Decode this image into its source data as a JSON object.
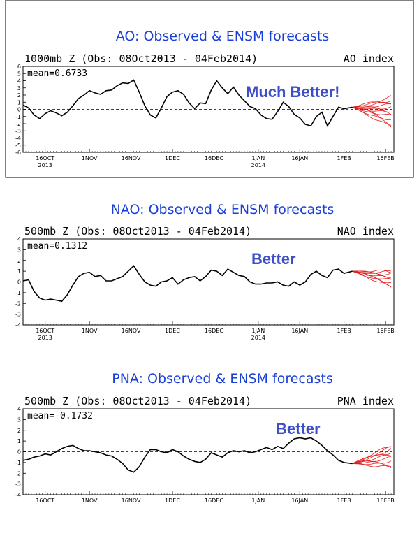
{
  "chart_data": [
    {
      "type": "line",
      "title": "AO: Observed & ENSM forecasts",
      "subtitle": "1000mb Z (Obs: 08Oct2013 - 04Feb2014)",
      "index_label": "AO index",
      "mean_label": "mean=0.6733",
      "annotation": "Much Better!",
      "ylim": [
        -6,
        6
      ],
      "yticks": [
        "6",
        "5",
        "4",
        "3",
        "2",
        "1",
        "0",
        "-1",
        "-2",
        "-3",
        "-4",
        "-5",
        "-6"
      ],
      "xticks": [
        {
          "label": "16OCT",
          "sub": "2013"
        },
        {
          "label": "1NOV",
          "sub": ""
        },
        {
          "label": "16NOV",
          "sub": ""
        },
        {
          "label": "1DEC",
          "sub": ""
        },
        {
          "label": "16DEC",
          "sub": ""
        },
        {
          "label": "1JAN",
          "sub": "2014"
        },
        {
          "label": "16JAN",
          "sub": ""
        },
        {
          "label": "1FEB",
          "sub": ""
        },
        {
          "label": "16FEB",
          "sub": ""
        }
      ],
      "observed": [
        [
          "2013-10-08",
          0.6
        ],
        [
          "2013-10-10",
          0.2
        ],
        [
          "2013-10-12",
          -0.8
        ],
        [
          "2013-10-14",
          -1.3
        ],
        [
          "2013-10-16",
          -0.6
        ],
        [
          "2013-10-18",
          -0.2
        ],
        [
          "2013-10-20",
          -0.5
        ],
        [
          "2013-10-22",
          -0.9
        ],
        [
          "2013-10-24",
          -0.4
        ],
        [
          "2013-10-26",
          0.5
        ],
        [
          "2013-10-28",
          1.5
        ],
        [
          "2013-10-30",
          2.0
        ],
        [
          "2013-11-01",
          2.6
        ],
        [
          "2013-11-03",
          2.3
        ],
        [
          "2013-11-05",
          2.1
        ],
        [
          "2013-11-07",
          2.6
        ],
        [
          "2013-11-09",
          2.7
        ],
        [
          "2013-11-11",
          3.3
        ],
        [
          "2013-11-13",
          3.7
        ],
        [
          "2013-11-15",
          3.6
        ],
        [
          "2013-11-17",
          4.1
        ],
        [
          "2013-11-19",
          2.4
        ],
        [
          "2013-11-21",
          0.5
        ],
        [
          "2013-11-23",
          -0.8
        ],
        [
          "2013-11-25",
          -1.2
        ],
        [
          "2013-11-27",
          0.2
        ],
        [
          "2013-11-29",
          1.8
        ],
        [
          "2013-12-01",
          2.4
        ],
        [
          "2013-12-03",
          2.6
        ],
        [
          "2013-12-05",
          2.1
        ],
        [
          "2013-12-07",
          0.9
        ],
        [
          "2013-12-09",
          0.1
        ],
        [
          "2013-12-11",
          0.9
        ],
        [
          "2013-12-13",
          0.8
        ],
        [
          "2013-12-15",
          2.7
        ],
        [
          "2013-12-17",
          4.0
        ],
        [
          "2013-12-19",
          3.0
        ],
        [
          "2013-12-21",
          2.2
        ],
        [
          "2013-12-23",
          3.1
        ],
        [
          "2013-12-25",
          2.0
        ],
        [
          "2013-12-27",
          1.2
        ],
        [
          "2013-12-29",
          0.4
        ],
        [
          "2013-12-31",
          0.1
        ],
        [
          "2014-01-02",
          -0.8
        ],
        [
          "2014-01-04",
          -1.3
        ],
        [
          "2014-01-06",
          -1.4
        ],
        [
          "2014-01-08",
          -0.3
        ],
        [
          "2014-01-10",
          1.0
        ],
        [
          "2014-01-12",
          0.4
        ],
        [
          "2014-01-14",
          -0.7
        ],
        [
          "2014-01-16",
          -1.2
        ],
        [
          "2014-01-18",
          -2.1
        ],
        [
          "2014-01-20",
          -2.3
        ],
        [
          "2014-01-22",
          -1.0
        ],
        [
          "2014-01-24",
          -0.4
        ],
        [
          "2014-01-26",
          -2.3
        ],
        [
          "2014-01-28",
          -1.0
        ],
        [
          "2014-01-30",
          0.3
        ],
        [
          "2014-02-01",
          0.1
        ],
        [
          "2014-02-04",
          0.3
        ]
      ],
      "forecast_start": "2014-02-04",
      "forecast_end": "2014-02-18",
      "forecast_start_value": 0.3,
      "forecast_end_values": [
        -2.5,
        -2.0,
        -1.5,
        -1.0,
        -0.6,
        -0.2,
        0.2,
        0.6,
        1.0,
        1.3,
        1.7
      ]
    },
    {
      "type": "line",
      "title": "NAO: Observed & ENSM forecasts",
      "subtitle": "500mb Z (Obs: 08Oct2013 - 04Feb2014)",
      "index_label": "NAO index",
      "mean_label": "mean=0.1312",
      "annotation": "Better",
      "ylim": [
        -4,
        4
      ],
      "yticks": [
        "4",
        "3",
        "2",
        "1",
        "0",
        "-1",
        "-2",
        "-3",
        "-4"
      ],
      "xticks": [
        {
          "label": "16OCT",
          "sub": "2013"
        },
        {
          "label": "1NOV",
          "sub": ""
        },
        {
          "label": "16NOV",
          "sub": ""
        },
        {
          "label": "1DEC",
          "sub": ""
        },
        {
          "label": "16DEC",
          "sub": ""
        },
        {
          "label": "1JAN",
          "sub": "2014"
        },
        {
          "label": "16JAN",
          "sub": ""
        },
        {
          "label": "1FEB",
          "sub": ""
        },
        {
          "label": "16FEB",
          "sub": ""
        }
      ],
      "observed": [
        [
          "2013-10-08",
          0.1
        ],
        [
          "2013-10-10",
          0.2
        ],
        [
          "2013-10-12",
          -0.9
        ],
        [
          "2013-10-14",
          -1.5
        ],
        [
          "2013-10-16",
          -1.7
        ],
        [
          "2013-10-18",
          -1.6
        ],
        [
          "2013-10-20",
          -1.7
        ],
        [
          "2013-10-22",
          -1.8
        ],
        [
          "2013-10-24",
          -1.2
        ],
        [
          "2013-10-26",
          -0.3
        ],
        [
          "2013-10-28",
          0.5
        ],
        [
          "2013-10-30",
          0.8
        ],
        [
          "2013-11-01",
          0.9
        ],
        [
          "2013-11-03",
          0.5
        ],
        [
          "2013-11-05",
          0.6
        ],
        [
          "2013-11-07",
          0.1
        ],
        [
          "2013-11-09",
          0.1
        ],
        [
          "2013-11-11",
          0.3
        ],
        [
          "2013-11-13",
          0.5
        ],
        [
          "2013-11-15",
          1.0
        ],
        [
          "2013-11-17",
          1.5
        ],
        [
          "2013-11-19",
          0.7
        ],
        [
          "2013-11-21",
          0.0
        ],
        [
          "2013-11-23",
          -0.3
        ],
        [
          "2013-11-25",
          -0.4
        ],
        [
          "2013-11-27",
          0.0
        ],
        [
          "2013-11-29",
          0.1
        ],
        [
          "2013-12-01",
          0.4
        ],
        [
          "2013-12-03",
          -0.2
        ],
        [
          "2013-12-05",
          0.2
        ],
        [
          "2013-12-07",
          0.4
        ],
        [
          "2013-12-09",
          0.5
        ],
        [
          "2013-12-11",
          0.1
        ],
        [
          "2013-12-13",
          0.5
        ],
        [
          "2013-12-15",
          1.1
        ],
        [
          "2013-12-17",
          1.0
        ],
        [
          "2013-12-19",
          0.6
        ],
        [
          "2013-12-21",
          1.2
        ],
        [
          "2013-12-23",
          0.9
        ],
        [
          "2013-12-25",
          0.6
        ],
        [
          "2013-12-27",
          0.5
        ],
        [
          "2013-12-29",
          0.0
        ],
        [
          "2013-12-31",
          -0.2
        ],
        [
          "2014-01-02",
          -0.2
        ],
        [
          "2014-01-04",
          -0.1
        ],
        [
          "2014-01-06",
          -0.1
        ],
        [
          "2014-01-08",
          0.0
        ],
        [
          "2014-01-10",
          -0.3
        ],
        [
          "2014-01-12",
          -0.4
        ],
        [
          "2014-01-14",
          0.0
        ],
        [
          "2014-01-16",
          -0.3
        ],
        [
          "2014-01-18",
          0.0
        ],
        [
          "2014-01-20",
          0.7
        ],
        [
          "2014-01-22",
          1.0
        ],
        [
          "2014-01-24",
          0.6
        ],
        [
          "2014-01-26",
          0.4
        ],
        [
          "2014-01-28",
          1.1
        ],
        [
          "2014-01-30",
          1.2
        ],
        [
          "2014-02-01",
          0.8
        ],
        [
          "2014-02-04",
          1.0
        ]
      ],
      "forecast_start": "2014-02-04",
      "forecast_end": "2014-02-18",
      "forecast_start_value": 1.0,
      "forecast_end_values": [
        -0.5,
        -0.3,
        -0.1,
        0.1,
        0.3,
        0.5,
        0.7,
        0.9,
        1.0
      ]
    },
    {
      "type": "line",
      "title": "PNA: Observed & ENSM forecasts",
      "subtitle": "500mb Z (Obs: 08Oct2013 - 04Feb2014)",
      "index_label": "PNA index",
      "mean_label": "mean=-0.1732",
      "annotation": "Better",
      "ylim": [
        -4,
        4
      ],
      "yticks": [
        "4",
        "3",
        "2",
        "1",
        "0",
        "-1",
        "-2",
        "-3",
        "-4"
      ],
      "xticks": [
        {
          "label": "16OCT",
          "sub": ""
        },
        {
          "label": "1NOV",
          "sub": ""
        },
        {
          "label": "16NOV",
          "sub": ""
        },
        {
          "label": "1DEC",
          "sub": ""
        },
        {
          "label": "16DEC",
          "sub": ""
        },
        {
          "label": "1JAN",
          "sub": ""
        },
        {
          "label": "16JAN",
          "sub": ""
        },
        {
          "label": "1FEB",
          "sub": ""
        },
        {
          "label": "16FEB",
          "sub": ""
        }
      ],
      "observed": [
        [
          "2013-10-08",
          -0.8
        ],
        [
          "2013-10-10",
          -0.7
        ],
        [
          "2013-10-12",
          -0.5
        ],
        [
          "2013-10-14",
          -0.4
        ],
        [
          "2013-10-16",
          -0.2
        ],
        [
          "2013-10-18",
          -0.3
        ],
        [
          "2013-10-20",
          0.0
        ],
        [
          "2013-10-22",
          0.3
        ],
        [
          "2013-10-24",
          0.5
        ],
        [
          "2013-10-26",
          0.6
        ],
        [
          "2013-10-28",
          0.3
        ],
        [
          "2013-10-30",
          0.1
        ],
        [
          "2013-11-01",
          0.1
        ],
        [
          "2013-11-03",
          0.0
        ],
        [
          "2013-11-05",
          -0.1
        ],
        [
          "2013-11-07",
          -0.3
        ],
        [
          "2013-11-09",
          -0.4
        ],
        [
          "2013-11-11",
          -0.7
        ],
        [
          "2013-11-13",
          -1.1
        ],
        [
          "2013-11-15",
          -1.7
        ],
        [
          "2013-11-17",
          -1.9
        ],
        [
          "2013-11-19",
          -1.4
        ],
        [
          "2013-11-21",
          -0.5
        ],
        [
          "2013-11-23",
          0.2
        ],
        [
          "2013-11-25",
          0.2
        ],
        [
          "2013-11-27",
          0.0
        ],
        [
          "2013-11-29",
          -0.1
        ],
        [
          "2013-12-01",
          0.2
        ],
        [
          "2013-12-03",
          0.0
        ],
        [
          "2013-12-05",
          -0.4
        ],
        [
          "2013-12-07",
          -0.7
        ],
        [
          "2013-12-09",
          -0.9
        ],
        [
          "2013-12-11",
          -1.0
        ],
        [
          "2013-12-13",
          -0.7
        ],
        [
          "2013-12-15",
          -0.1
        ],
        [
          "2013-12-17",
          -0.3
        ],
        [
          "2013-12-19",
          -0.5
        ],
        [
          "2013-12-21",
          -0.1
        ],
        [
          "2013-12-23",
          0.1
        ],
        [
          "2013-12-25",
          0.0
        ],
        [
          "2013-12-27",
          0.1
        ],
        [
          "2013-12-29",
          -0.1
        ],
        [
          "2013-12-31",
          0.0
        ],
        [
          "2014-01-02",
          0.2
        ],
        [
          "2014-01-04",
          0.4
        ],
        [
          "2014-01-06",
          0.2
        ],
        [
          "2014-01-08",
          0.5
        ],
        [
          "2014-01-10",
          0.3
        ],
        [
          "2014-01-12",
          0.8
        ],
        [
          "2014-01-14",
          1.2
        ],
        [
          "2014-01-16",
          1.3
        ],
        [
          "2014-01-18",
          1.2
        ],
        [
          "2014-01-20",
          1.3
        ],
        [
          "2014-01-22",
          1.0
        ],
        [
          "2014-01-24",
          0.6
        ],
        [
          "2014-01-26",
          0.1
        ],
        [
          "2014-01-28",
          -0.3
        ],
        [
          "2014-01-30",
          -0.8
        ],
        [
          "2014-02-01",
          -1.0
        ],
        [
          "2014-02-04",
          -1.1
        ]
      ],
      "forecast_start": "2014-02-04",
      "forecast_end": "2014-02-18",
      "forecast_start_value": -1.1,
      "forecast_end_values": [
        -1.5,
        -1.2,
        -0.9,
        -0.6,
        -0.3,
        0.0,
        0.2,
        0.4,
        0.6
      ]
    }
  ],
  "colors": {
    "title": "#1a3fd6",
    "annotation": "#3c4fc9",
    "observed": "#000000",
    "ensemble": "#e02020"
  }
}
